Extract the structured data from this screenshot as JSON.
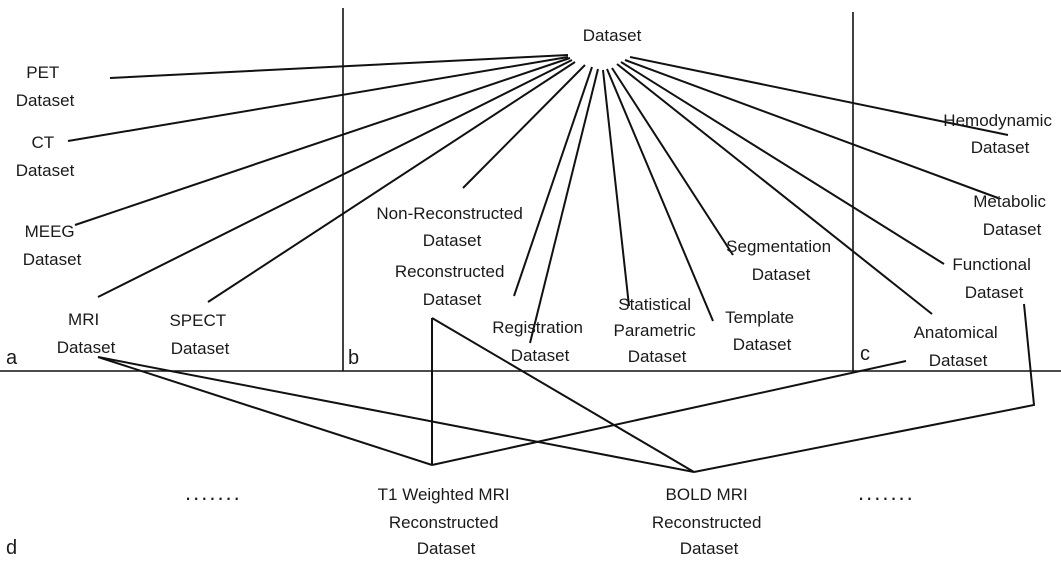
{
  "panels": {
    "a": "a",
    "b": "b",
    "c": "c",
    "d": "d"
  },
  "root": {
    "label": [
      "Dataset"
    ]
  },
  "panel_a": {
    "pet": [
      "PET",
      "Dataset"
    ],
    "ct": [
      "CT",
      "Dataset"
    ],
    "meeg": [
      "MEEG",
      "Dataset"
    ],
    "mri": [
      "MRI",
      "Dataset"
    ],
    "spect": [
      "SPECT",
      "Dataset"
    ]
  },
  "panel_b": {
    "non_reconstructed": [
      "Non-Reconstructed",
      "Dataset"
    ],
    "reconstructed": [
      "Reconstructed",
      "Dataset"
    ],
    "registration": [
      "Registration",
      "Dataset"
    ],
    "statistical_parametric": [
      "Statistical",
      "Parametric",
      "Dataset"
    ],
    "template": [
      "Template",
      "Dataset"
    ],
    "segmentation": [
      "Segmentation",
      "Dataset"
    ]
  },
  "panel_c": {
    "hemodynamic": [
      "Hemodynamic",
      "Dataset"
    ],
    "metabolic": [
      "Metabolic",
      "Dataset"
    ],
    "functional": [
      "Functional",
      "Dataset"
    ],
    "anatomical": [
      "Anatomical",
      "Dataset"
    ]
  },
  "panel_d": {
    "ellipsis_left": ".......",
    "ellipsis_right": ".......",
    "t1": [
      "T1 Weighted MRI",
      "Reconstructed",
      "Dataset"
    ],
    "bold": [
      "BOLD MRI",
      "Reconstructed",
      "Dataset"
    ]
  }
}
